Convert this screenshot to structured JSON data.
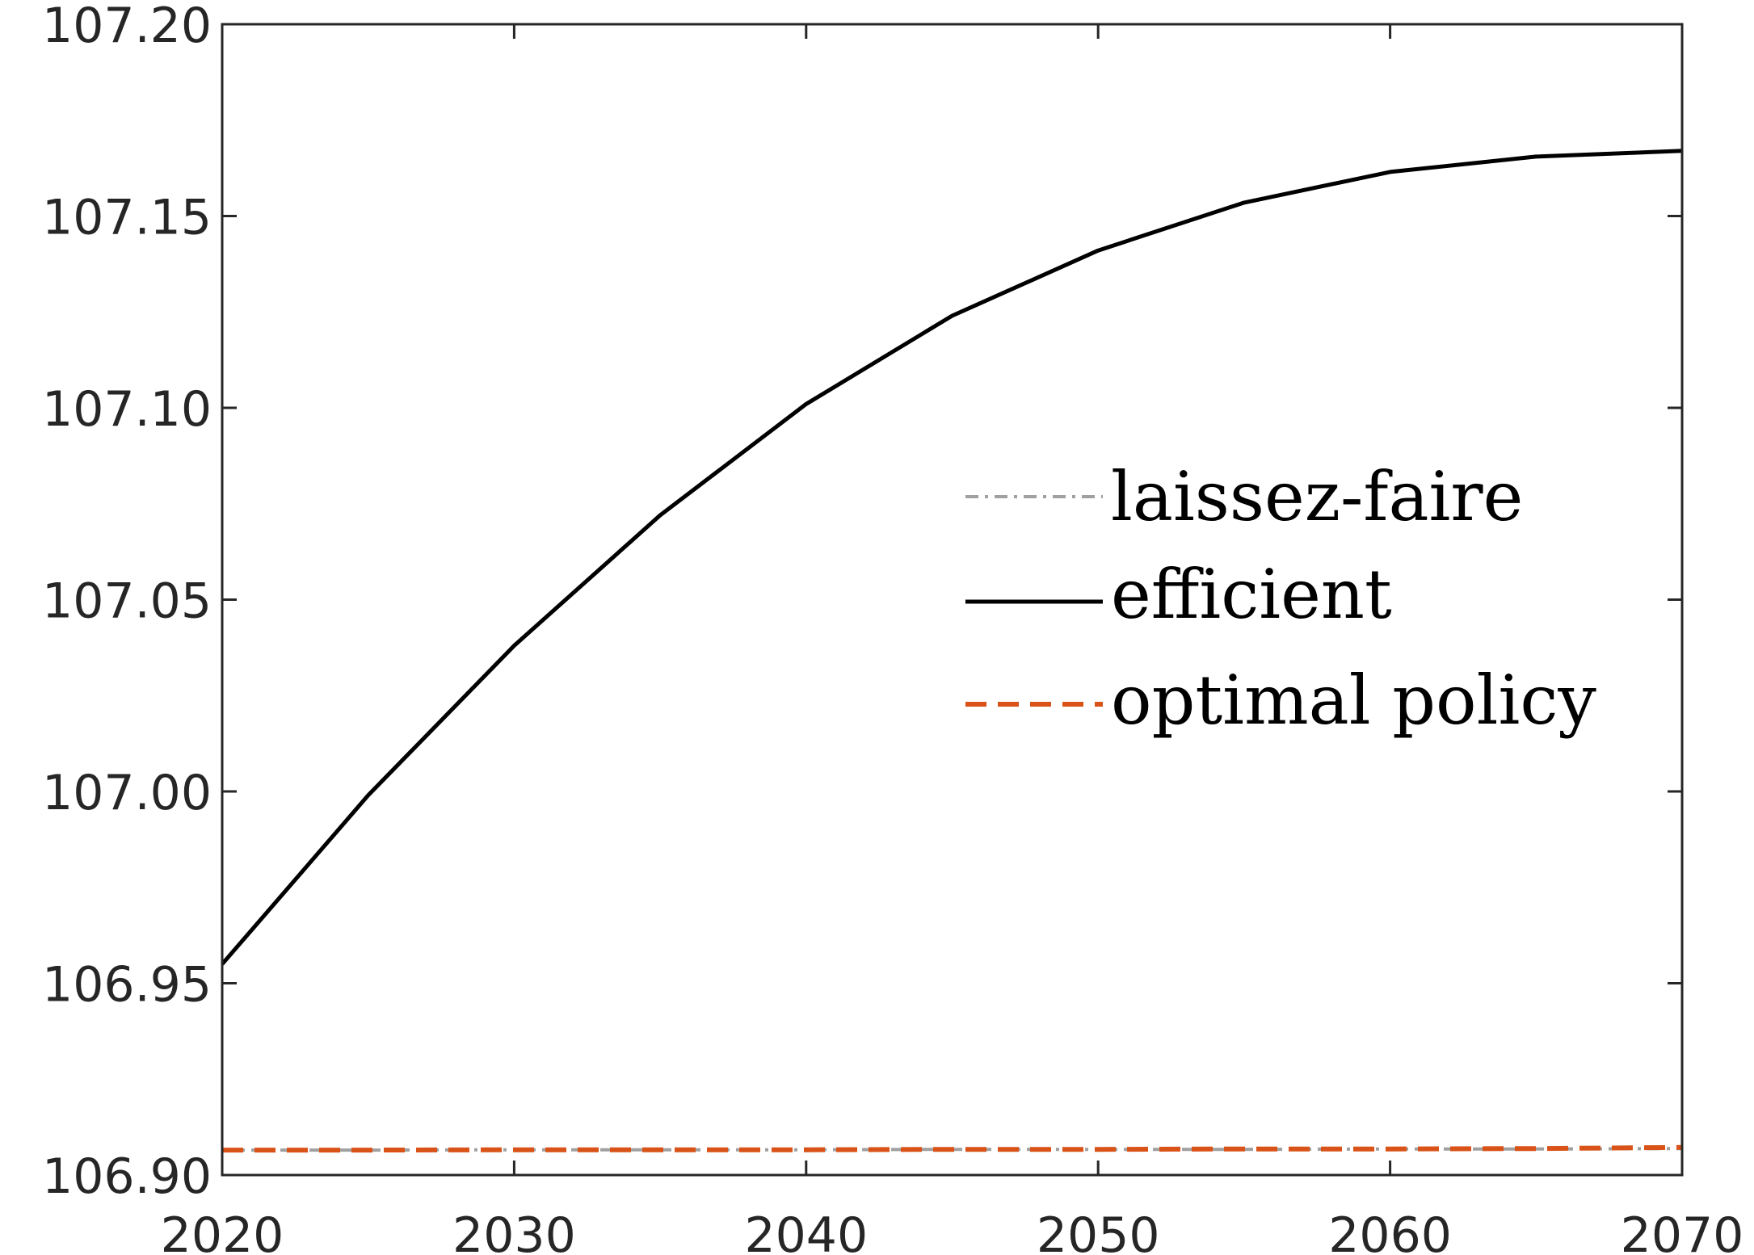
{
  "chart_data": {
    "type": "line",
    "title": "",
    "xlabel": "",
    "ylabel": "",
    "xlim": [
      2020,
      2070
    ],
    "ylim": [
      106.9,
      107.2
    ],
    "x_ticks": [
      2020,
      2030,
      2040,
      2050,
      2060,
      2070
    ],
    "x_tick_labels": [
      "2020",
      "2030",
      "2040",
      "2050",
      "2060",
      "2070"
    ],
    "y_ticks": [
      106.9,
      106.95,
      107.0,
      107.05,
      107.1,
      107.15,
      107.2
    ],
    "y_tick_labels": [
      "106.90",
      "106.95",
      "107.00",
      "107.05",
      "107.10",
      "107.15",
      "107.20"
    ],
    "grid": false,
    "legend_position": "right",
    "x": [
      2020,
      2025,
      2030,
      2035,
      2040,
      2045,
      2050,
      2055,
      2060,
      2065,
      2070
    ],
    "series": [
      {
        "name": "laissez-faire",
        "color": "#a0a0a0",
        "style": "dash-dot",
        "values": [
          106.9065,
          106.9065,
          106.9066,
          106.9066,
          106.9066,
          106.9067,
          106.9067,
          106.9067,
          106.9068,
          106.9068,
          106.9069
        ]
      },
      {
        "name": "efficient",
        "color": "#000000",
        "style": "solid",
        "values": [
          106.955,
          106.999,
          107.038,
          107.072,
          107.101,
          107.124,
          107.141,
          107.1535,
          107.1615,
          107.1655,
          107.167
        ]
      },
      {
        "name": "optimal policy",
        "color": "#d95319",
        "style": "dashed",
        "values": [
          106.9065,
          106.9065,
          106.9066,
          106.9066,
          106.9066,
          106.9067,
          106.9067,
          106.9068,
          106.9068,
          106.9069,
          106.9072
        ]
      }
    ]
  }
}
